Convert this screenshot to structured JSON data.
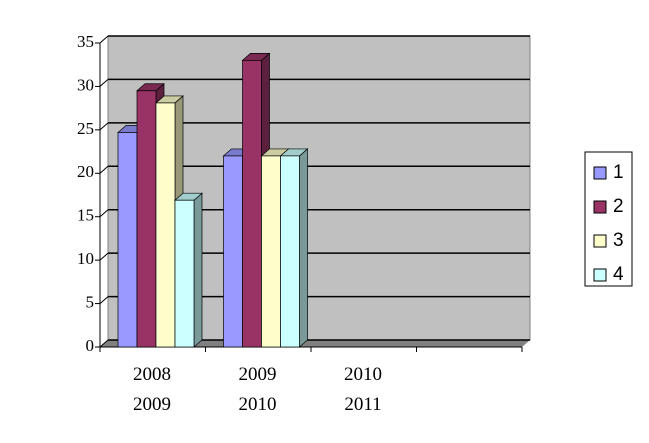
{
  "chart_data": {
    "type": "bar3d",
    "categories": [
      "2008\n2009",
      "2009\n2010",
      "2010\n2011",
      null
    ],
    "series": [
      {
        "name": "1",
        "color": "#9999ff",
        "values": [
          24.7,
          22,
          null,
          null
        ]
      },
      {
        "name": "2",
        "color": "#993366",
        "values": [
          29.5,
          33,
          null,
          null
        ]
      },
      {
        "name": "3",
        "color": "#ffffcc",
        "values": [
          28.1,
          22,
          null,
          null
        ]
      },
      {
        "name": "4",
        "color": "#ccffff",
        "values": [
          16.9,
          22,
          null,
          null
        ]
      }
    ],
    "ylim": [
      0,
      35
    ],
    "yticks": [
      0,
      5,
      10,
      15,
      20,
      25,
      30,
      35
    ],
    "grid": true,
    "legend": "right"
  }
}
